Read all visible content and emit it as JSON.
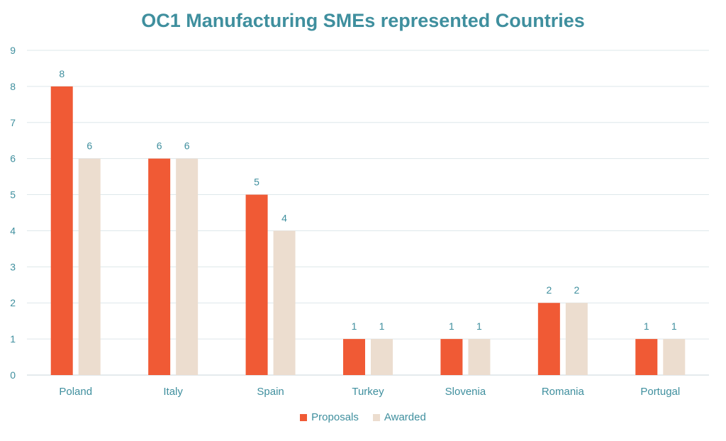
{
  "chart_data": {
    "type": "bar",
    "title": "OC1 Manufacturing SMEs represented Countries",
    "categories": [
      "Poland",
      "Italy",
      "Spain",
      "Turkey",
      "Slovenia",
      "Romania",
      "Portugal"
    ],
    "series": [
      {
        "name": "Proposals",
        "values": [
          8,
          6,
          5,
          1,
          1,
          2,
          1
        ],
        "color": "#f05a35"
      },
      {
        "name": "Awarded",
        "values": [
          6,
          6,
          4,
          1,
          1,
          2,
          1
        ],
        "color": "#ecddcf"
      }
    ],
    "ylim": [
      0,
      9
    ],
    "yticks": [
      "0",
      "1",
      "2",
      "3",
      "4",
      "5",
      "6",
      "7",
      "8",
      "9"
    ],
    "xlabel": "",
    "ylabel": "",
    "grid": true,
    "legend_position": "bottom-center",
    "text_color": "#3f8f9e",
    "grid_color": "#dde7ea"
  }
}
